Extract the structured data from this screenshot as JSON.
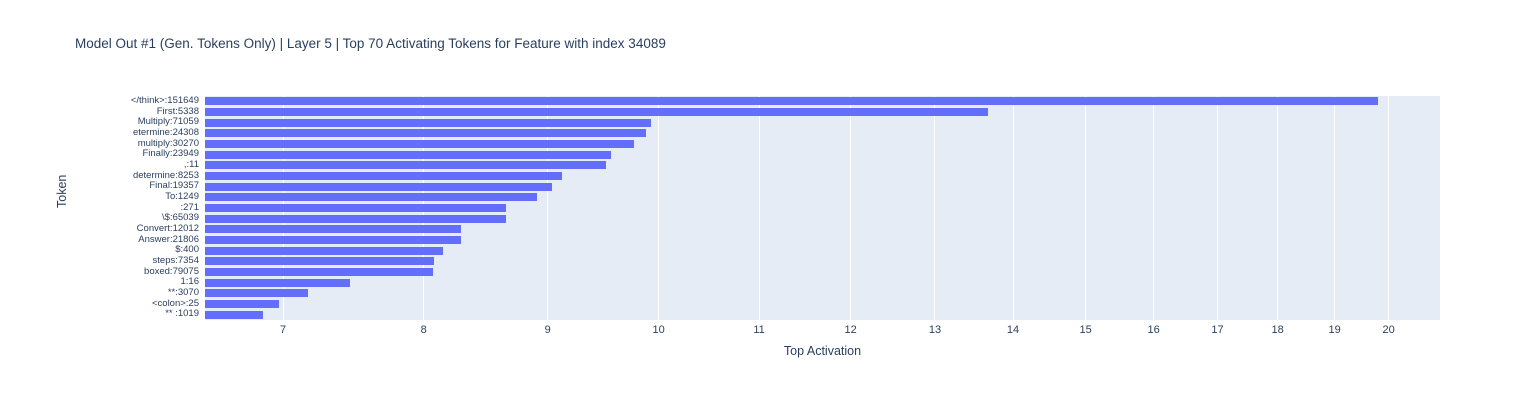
{
  "colors": {
    "bar": "#636efa",
    "plot_bg": "#e5ecf6",
    "grid": "#ffffff",
    "text": "#2a3f5f"
  },
  "chart_data": {
    "type": "bar",
    "orientation": "horizontal",
    "title": "Model Out #1 (Gen. Tokens Only) | Layer 5 | Top 70 Activating Tokens for Feature with index 34089",
    "xlabel": "Top Activation",
    "ylabel": "Token",
    "x_scale": "log",
    "xlim": [
      6.5,
      21.0
    ],
    "x_ticks": [
      7,
      8,
      9,
      10,
      11,
      12,
      13,
      14,
      15,
      16,
      17,
      18,
      19,
      20
    ],
    "grid": true,
    "legend": "none",
    "categories": [
      "</think>:151649",
      "First:5338",
      "Multiply:71059",
      "etermine:24308",
      "multiply:30270",
      "Finally:23949",
      ",:11",
      "determine:8253",
      "Final:19357",
      "To:1249",
      ":271",
      "\\$:65039",
      "Convert:12012",
      "Answer:21806",
      "$:400",
      "steps:7354",
      "boxed:79075",
      "1:16",
      "**:3070",
      "<colon>:25",
      "** :1019"
    ],
    "values": [
      19.79,
      13.67,
      9.93,
      9.88,
      9.77,
      9.56,
      9.51,
      9.12,
      9.04,
      8.91,
      8.65,
      8.65,
      8.29,
      8.29,
      8.15,
      8.08,
      8.07,
      7.46,
      7.17,
      6.97,
      6.87
    ]
  }
}
